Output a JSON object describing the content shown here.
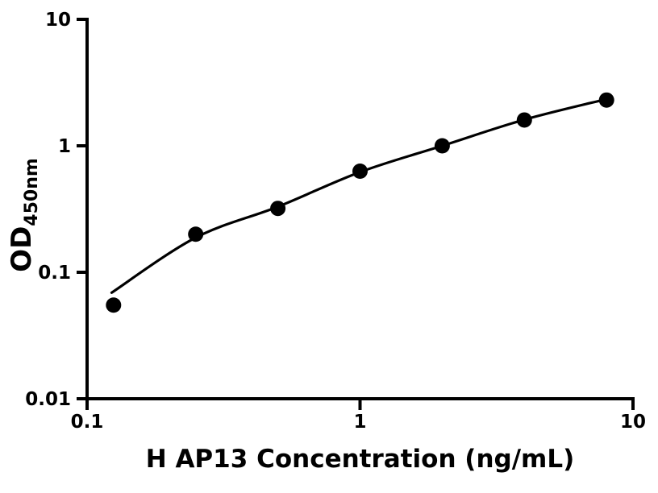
{
  "figure": {
    "background_color": "#ffffff",
    "axis_color": "#000000",
    "marker_color": "#000000",
    "curve_color": "#000000",
    "text_color": "#000000"
  },
  "chart_data": {
    "type": "scatter",
    "title": "",
    "xlabel": "H AP13 Concentration (ng/mL)",
    "ylabel": "OD",
    "ylabel_subscript": "450nm",
    "x_scale": "log10",
    "y_scale": "log10",
    "xlim": [
      0.1,
      10
    ],
    "ylim": [
      0.01,
      10
    ],
    "grid": false,
    "legend": "none",
    "x_ticks": [
      {
        "value": 0.1,
        "label": "0.1"
      },
      {
        "value": 1,
        "label": "1"
      },
      {
        "value": 10,
        "label": "10"
      }
    ],
    "y_ticks": [
      {
        "value": 10,
        "label": "10"
      },
      {
        "value": 1,
        "label": "1"
      },
      {
        "value": 0.1,
        "label": "0.1"
      },
      {
        "value": 0.01,
        "label": "0.01"
      }
    ],
    "series": [
      {
        "name": "standard-data-points",
        "type": "scatter",
        "marker": "filled-circle",
        "color": "#000000",
        "x": [
          0.125,
          0.25,
          0.5,
          1,
          2,
          4,
          8
        ],
        "y": [
          0.055,
          0.2,
          0.32,
          0.63,
          1.0,
          1.6,
          2.3
        ]
      },
      {
        "name": "fit-curve",
        "type": "line",
        "color": "#000000",
        "x": [
          0.123,
          0.25,
          0.5,
          1,
          2,
          4,
          8
        ],
        "y": [
          0.069,
          0.188,
          0.33,
          0.62,
          1.0,
          1.61,
          2.34
        ]
      }
    ]
  }
}
